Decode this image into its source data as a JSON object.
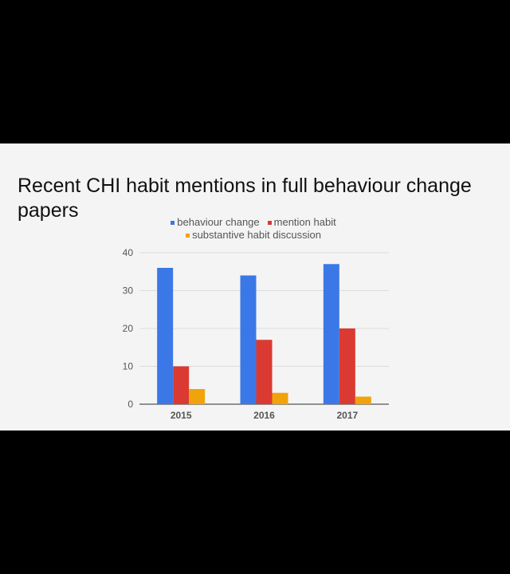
{
  "slide": {
    "title": "Recent CHI habit mentions in full behaviour change papers"
  },
  "chart_data": {
    "type": "bar",
    "title": "",
    "xlabel": "",
    "ylabel": "",
    "categories": [
      "2015",
      "2016",
      "2017"
    ],
    "ylim": [
      0,
      40
    ],
    "yticks": [
      0,
      10,
      20,
      30,
      40
    ],
    "grid": true,
    "legend_position": "top",
    "series": [
      {
        "name": "behaviour change",
        "color": "#3b78e7",
        "values": [
          36,
          34,
          37
        ]
      },
      {
        "name": "mention habit",
        "color": "#db3a32",
        "values": [
          10,
          17,
          20
        ]
      },
      {
        "name": "substantive habit discussion",
        "color": "#f0a30a",
        "values": [
          4,
          3,
          2
        ]
      }
    ]
  }
}
